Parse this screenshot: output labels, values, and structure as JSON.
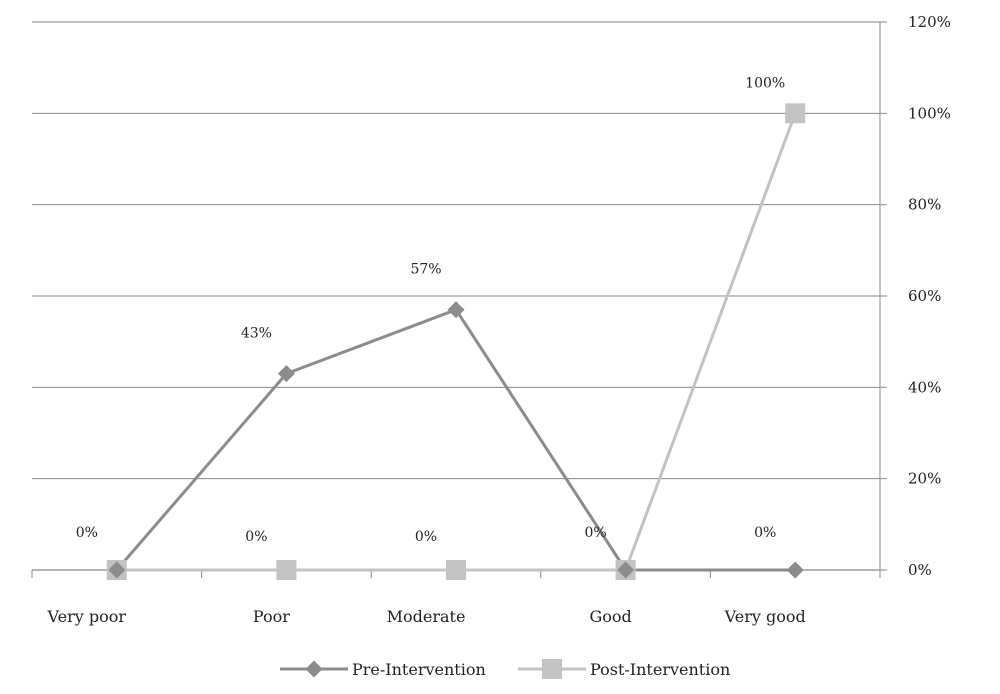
{
  "chart_data": {
    "type": "line",
    "categories": [
      "Very poor",
      "Poor",
      "Moderate",
      "Good",
      "Very good"
    ],
    "series": [
      {
        "name": "Pre-Intervention",
        "values": [
          0,
          43,
          57,
          0,
          0
        ],
        "labels": [
          "0%",
          "43%",
          "57%",
          "0%",
          "0%"
        ],
        "color": "#8c8c8c",
        "marker": "diamond"
      },
      {
        "name": "Post-Intervention",
        "values": [
          0,
          0,
          0,
          0,
          100
        ],
        "labels": [
          "",
          "0%",
          "0%",
          "",
          "100%"
        ],
        "color": "#c3c3c3",
        "marker": "square"
      }
    ],
    "ylim": [
      0,
      120
    ],
    "y_ticks": [
      "0%",
      "20%",
      "40%",
      "60%",
      "80%",
      "100%",
      "120%"
    ],
    "y_axis_side": "right",
    "grid": true,
    "legend_position": "bottom",
    "title": "",
    "xlabel": "",
    "ylabel": ""
  }
}
